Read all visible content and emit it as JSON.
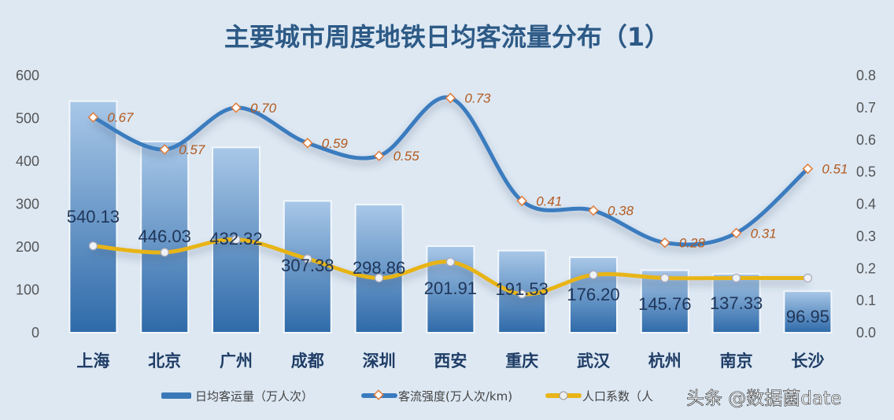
{
  "chart_data": {
    "type": "bar",
    "title": "主要城市周度地铁日均客流量分布（1）",
    "categories": [
      "上海",
      "北京",
      "广州",
      "成都",
      "深圳",
      "西安",
      "重庆",
      "武汉",
      "杭州",
      "南京",
      "长沙"
    ],
    "series": [
      {
        "name": "日均客运量（万人次）",
        "type": "bar",
        "axis": "left",
        "color": "#3b78b8",
        "values": [
          540.13,
          446.03,
          432.32,
          307.38,
          298.86,
          201.91,
          191.53,
          176.2,
          145.76,
          137.33,
          96.95
        ],
        "labels": [
          "540.13",
          "446.03",
          "432.32",
          "307.38",
          "298.86",
          "201.91",
          "191.53",
          "176.20",
          "145.76",
          "137.33",
          "96.95"
        ]
      },
      {
        "name": "客流强度(万人次/km)",
        "type": "line",
        "axis": "right",
        "color": "#3a7bbf",
        "marker_color": "#e07b39",
        "values": [
          0.67,
          0.57,
          0.7,
          0.59,
          0.55,
          0.73,
          0.41,
          0.38,
          0.28,
          0.31,
          0.51
        ],
        "labels": [
          "0.67",
          "0.57",
          "0.70",
          "0.59",
          "0.55",
          "0.73",
          "0.41",
          "0.38",
          "0.28",
          "0.31",
          "0.51"
        ]
      },
      {
        "name": "人口系数（人",
        "type": "line",
        "axis": "right",
        "color": "#e8b418",
        "values": [
          0.27,
          0.25,
          0.29,
          0.23,
          0.17,
          0.22,
          0.12,
          0.18,
          0.17,
          0.17,
          0.17
        ]
      }
    ],
    "ylim_left": [
      0,
      600
    ],
    "ylim_right": [
      0,
      0.8
    ],
    "yticks_left": [
      "0",
      "100",
      "200",
      "300",
      "400",
      "500",
      "600"
    ],
    "yticks_right": [
      "0.0",
      "0.1",
      "0.2",
      "0.3",
      "0.4",
      "0.5",
      "0.6",
      "0.7",
      "0.8"
    ],
    "grid": false,
    "legend_position": "bottom"
  },
  "watermark": "头条 @数据菌date"
}
